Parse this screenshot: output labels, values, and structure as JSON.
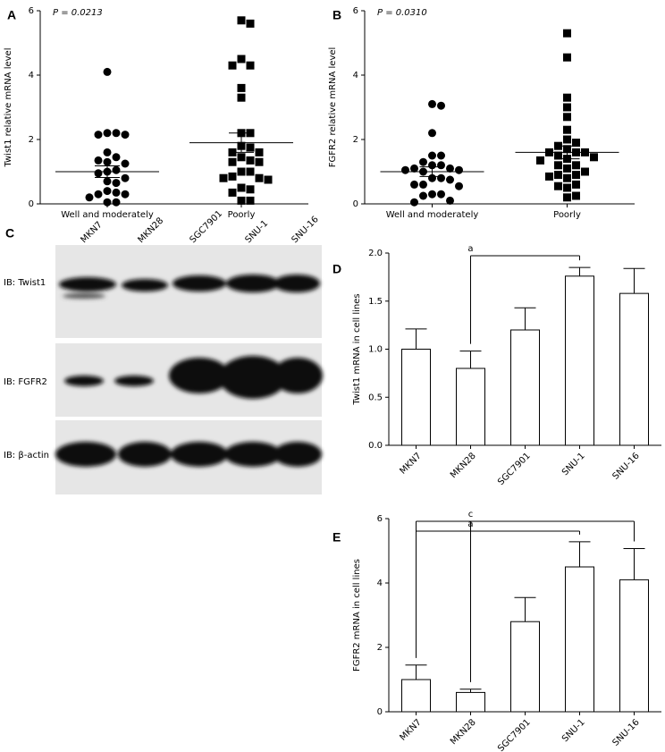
{
  "chart_data": [
    {
      "panel": "A",
      "type": "scatter",
      "annotation": "P = 0.0213",
      "y_label": "Twist1 relative mRNA level",
      "categories": [
        "Well and moderately",
        "Poorly"
      ],
      "series": [
        {
          "marker": "circle",
          "color": "#000000",
          "values": [
            4.1,
            2.2,
            2.2,
            2.15,
            2.15,
            1.6,
            1.45,
            1.35,
            1.3,
            1.25,
            1.05,
            1.0,
            0.95,
            0.8,
            0.7,
            0.65,
            0.4,
            0.35,
            0.3,
            0.3,
            0.2,
            0.05,
            0.05
          ],
          "mean": 1.0,
          "error": 0.18
        },
        {
          "marker": "square",
          "color": "#000000",
          "values": [
            5.7,
            5.6,
            4.5,
            4.3,
            4.3,
            3.6,
            3.3,
            2.2,
            2.2,
            1.8,
            1.75,
            1.6,
            1.6,
            1.45,
            1.35,
            1.3,
            1.3,
            1.0,
            1.0,
            0.85,
            0.8,
            0.8,
            0.75,
            0.5,
            0.45,
            0.35,
            0.1,
            0.1
          ],
          "mean": 1.9,
          "error": 0.3
        }
      ],
      "ylim": [
        0,
        6
      ],
      "yticks": [
        0,
        2,
        4,
        6
      ]
    },
    {
      "panel": "B",
      "type": "scatter",
      "annotation": "P = 0.0310",
      "y_label": "FGFR2 relative mRNA level",
      "categories": [
        "Well and moderately",
        "Poorly"
      ],
      "series": [
        {
          "marker": "circle",
          "color": "#000000",
          "values": [
            3.1,
            3.05,
            2.2,
            1.5,
            1.5,
            1.3,
            1.2,
            1.2,
            1.1,
            1.1,
            1.05,
            1.05,
            1.0,
            0.8,
            0.8,
            0.75,
            0.6,
            0.6,
            0.55,
            0.3,
            0.3,
            0.25,
            0.1,
            0.05
          ],
          "mean": 1.0,
          "error": 0.15
        },
        {
          "marker": "square",
          "color": "#000000",
          "values": [
            5.3,
            4.55,
            3.3,
            3.0,
            2.7,
            2.3,
            2.0,
            1.9,
            1.8,
            1.7,
            1.6,
            1.6,
            1.6,
            1.5,
            1.45,
            1.4,
            1.35,
            1.2,
            1.2,
            1.1,
            1.0,
            0.9,
            0.9,
            0.85,
            0.8,
            0.6,
            0.55,
            0.5,
            0.25,
            0.2
          ],
          "mean": 1.6,
          "error": 0.2
        }
      ],
      "ylim": [
        0,
        6
      ],
      "yticks": [
        0,
        2,
        4,
        6
      ]
    },
    {
      "panel": "D",
      "type": "bar",
      "y_label": "Twist1 mRNA in cell lines",
      "categories": [
        "MKN7",
        "MKN28",
        "SGC7901",
        "SNU-1",
        "SNU-16"
      ],
      "values": [
        1.0,
        0.8,
        1.2,
        1.76,
        1.58
      ],
      "errors": [
        0.21,
        0.18,
        0.23,
        0.09,
        0.26
      ],
      "color": "#ffffff",
      "ylim": [
        0,
        2
      ],
      "yticks": [
        {
          "value": 0,
          "label": "0.0"
        },
        0.5,
        {
          "value": 1,
          "label": "1.0"
        },
        1.5,
        {
          "value": 2,
          "label": "2.0"
        }
      ],
      "brackets": [
        {
          "label": "a",
          "from": [
            "MKN28"
          ],
          "to": "SNU-1"
        }
      ]
    },
    {
      "panel": "E",
      "type": "bar",
      "y_label": "FGFR2 mRNA in cell lines",
      "categories": [
        "MKN7",
        "MKN28",
        "SGC7901",
        "SNU-1",
        "SNU-16"
      ],
      "values": [
        1.0,
        0.6,
        2.8,
        4.5,
        4.1
      ],
      "errors": [
        0.45,
        0.1,
        0.75,
        0.78,
        0.97
      ],
      "color": "#ffffff",
      "ylim": [
        0,
        6
      ],
      "yticks": [
        0,
        2,
        4,
        6
      ],
      "brackets": [
        {
          "label": "c",
          "from": [
            "MKN7",
            "MKN28"
          ],
          "to": "SNU-16"
        },
        {
          "label": "a",
          "from": [
            "MKN7",
            "MKN28"
          ],
          "to": "SNU-1"
        }
      ]
    }
  ],
  "blot": {
    "panel": "C",
    "lanes": [
      "MKN7",
      "MKN28",
      "SGC7901",
      "SNU-1",
      "SNU-16"
    ],
    "rows": [
      "IB: Twist1",
      "IB: FGFR2",
      "IB: β-actin"
    ]
  }
}
